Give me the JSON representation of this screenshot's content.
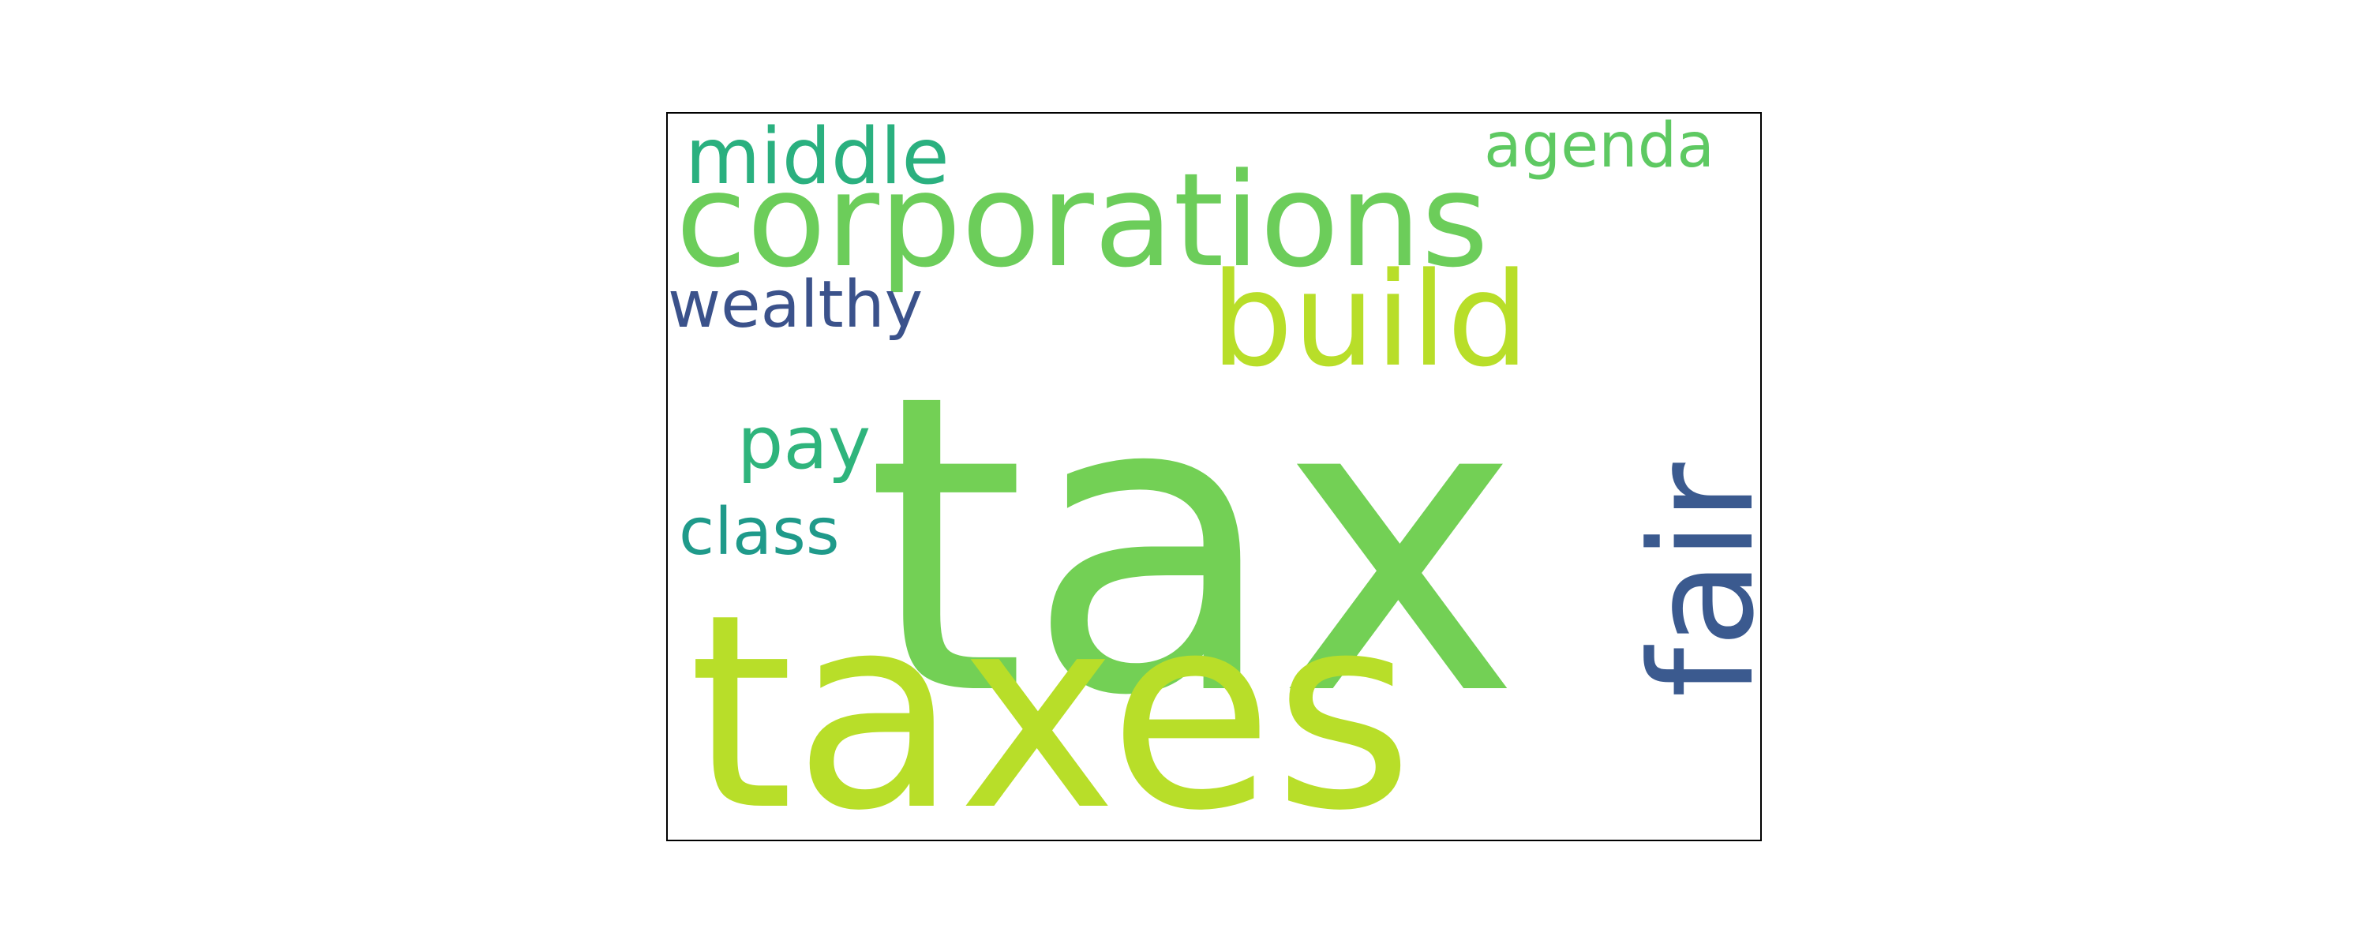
{
  "word_cloud": {
    "words": {
      "tax": {
        "text": "tax",
        "color": "#73d055"
      },
      "taxes": {
        "text": "taxes",
        "color": "#b8de29"
      },
      "corporations": {
        "text": "corporations",
        "color": "#6ccd5a"
      },
      "build": {
        "text": "build",
        "color": "#b8de29"
      },
      "middle": {
        "text": "middle",
        "color": "#2ab07f"
      },
      "agenda": {
        "text": "agenda",
        "color": "#5ec962"
      },
      "wealthy": {
        "text": "wealthy",
        "color": "#3b528b"
      },
      "pay": {
        "text": "pay",
        "color": "#2fb47c"
      },
      "class": {
        "text": "class",
        "color": "#1f9a8a"
      },
      "fair": {
        "text": "fair",
        "color": "#3b5a8f"
      }
    }
  }
}
